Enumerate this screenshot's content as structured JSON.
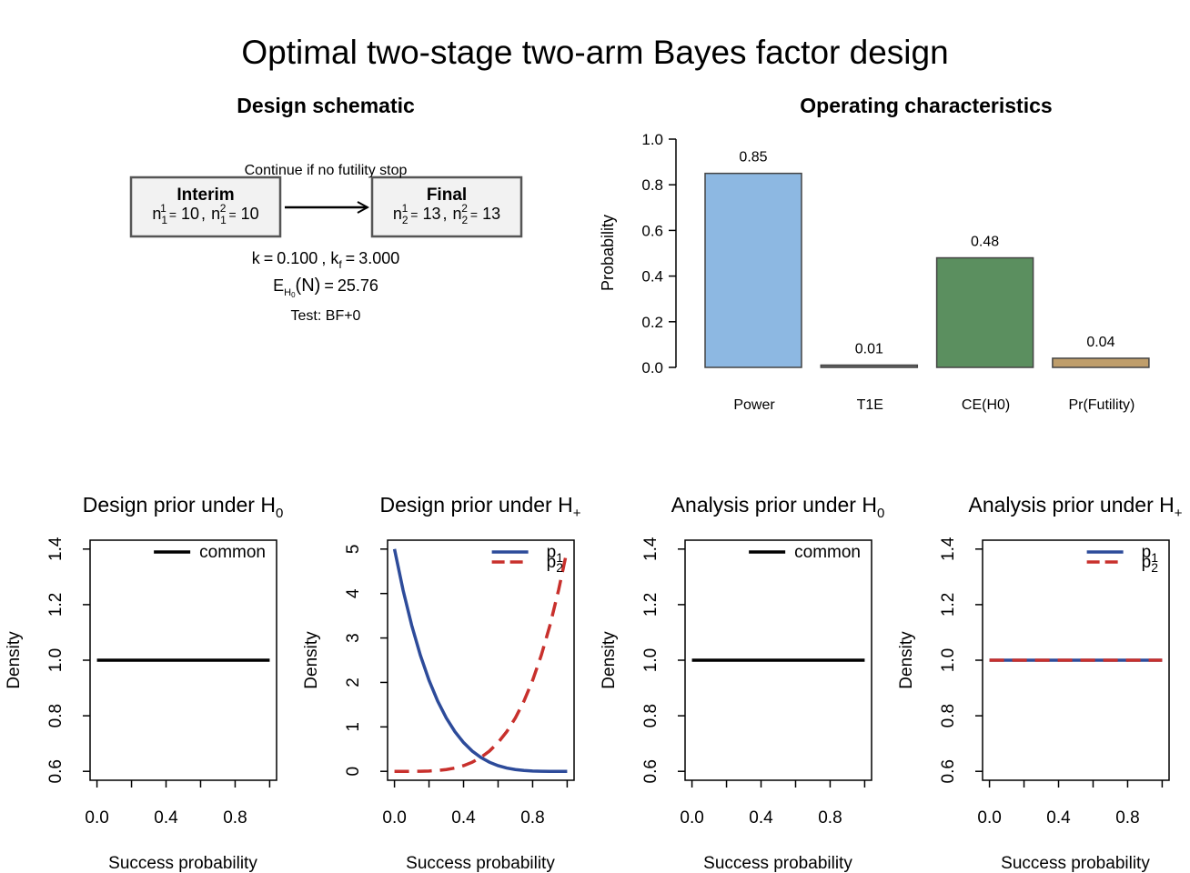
{
  "title": "Optimal two-stage two-arm Bayes factor design",
  "schematic": {
    "title": "Design schematic",
    "arrow_label": "Continue if no futility stop",
    "symbol_n": "n",
    "arm1": "1",
    "arm2": "2",
    "equals": "=",
    "comma": ",",
    "stages": [
      {
        "label": "Interim",
        "stage": "1",
        "n_arm1": 10,
        "n_arm2": 10
      },
      {
        "label": "Final",
        "stage": "2",
        "n_arm1": 13,
        "n_arm2": 13
      }
    ],
    "k": {
      "symbol": "k",
      "value": "0.100"
    },
    "kf": {
      "symbol": "k",
      "sub": "f",
      "value": "3.000"
    },
    "expected_n": {
      "symbol": "E",
      "sub": "H",
      "subsub": "0",
      "arg": "(N)",
      "value": 25.76
    },
    "test": "Test: BF+0"
  },
  "chart_data": [
    {
      "type": "bar",
      "title": "Operating characteristics",
      "y_label": "Probability",
      "categories": [
        "Power",
        "T1E",
        "CE(H0)",
        "Pr(Futility)"
      ],
      "values": [
        0.85,
        0.01,
        0.48,
        0.04
      ],
      "colors": [
        "#8db8e2",
        "#6b6b6b",
        "#5b8f5f",
        "#bf9e6b"
      ],
      "ylim": [
        0,
        1
      ],
      "yticks": [
        {
          "value": 0,
          "label": "0.0"
        },
        {
          "value": 0.2,
          "label": "0.2"
        },
        {
          "value": 0.4,
          "label": "0.4"
        },
        {
          "value": 0.6,
          "label": "0.6"
        },
        {
          "value": 0.8,
          "label": "0.8"
        },
        {
          "value": 1,
          "label": "1.0"
        }
      ]
    },
    {
      "type": "line",
      "title": "Design prior under H",
      "title_sub": "0",
      "x_label": "Success probability",
      "y_label": "Density",
      "xlim": [
        -0.04,
        1.04
      ],
      "ylim": [
        0.568,
        1.432
      ],
      "xticks": [
        {
          "value": 0,
          "label": "0.0"
        },
        {
          "value": 0.2,
          "label": null
        },
        {
          "value": 0.4,
          "label": "0.4"
        },
        {
          "value": 0.6,
          "label": null
        },
        {
          "value": 0.8,
          "label": "0.8"
        },
        {
          "value": 1,
          "label": null
        }
      ],
      "yticks": [
        0.6,
        0.8,
        {
          "value": 1,
          "label": "1.0"
        },
        1.2,
        1.4
      ],
      "legend": "topright",
      "series": [
        {
          "name": "common",
          "color": "#000000",
          "dash": false,
          "x": [
            0,
            1
          ],
          "values": [
            1,
            1
          ]
        }
      ]
    },
    {
      "type": "line",
      "title": "Design prior under H",
      "title_sub": "+",
      "x_label": "Success probability",
      "y_label": "Density",
      "xlim": [
        -0.04,
        1.04
      ],
      "ylim": [
        -0.2,
        5.2
      ],
      "xticks": [
        {
          "value": 0,
          "label": "0.0"
        },
        {
          "value": 0.2,
          "label": null
        },
        {
          "value": 0.4,
          "label": "0.4"
        },
        {
          "value": 0.6,
          "label": null
        },
        {
          "value": 0.8,
          "label": "0.8"
        },
        {
          "value": 1,
          "label": null
        }
      ],
      "yticks": [
        0,
        1,
        2,
        3,
        4,
        5
      ],
      "legend": "topright",
      "series": [
        {
          "name": "p",
          "name_sub": "1",
          "color": "#2d4b9a",
          "dash": false,
          "x": [
            0,
            0.05,
            0.1,
            0.15,
            0.2,
            0.25,
            0.3,
            0.35,
            0.4,
            0.45,
            0.5,
            0.55,
            0.6,
            0.65,
            0.7,
            0.75,
            0.8,
            0.85,
            0.9,
            0.95,
            1
          ],
          "values": [
            5,
            4.0725,
            3.2805,
            2.61,
            2.048,
            1.582,
            1.2005,
            0.8925,
            0.648,
            0.4575,
            0.3125,
            0.205,
            0.128,
            0.075,
            0.0405,
            0.0195,
            0.008,
            0.0025,
            0.0005,
            0,
            0
          ]
        },
        {
          "name": "p",
          "name_sub": "2",
          "color": "#c8302c",
          "dash": true,
          "x": [
            0,
            0.05,
            0.1,
            0.15,
            0.2,
            0.25,
            0.3,
            0.35,
            0.4,
            0.45,
            0.5,
            0.55,
            0.6,
            0.65,
            0.7,
            0.75,
            0.8,
            0.85,
            0.9,
            0.95,
            0.99
          ],
          "values": [
            0,
            0,
            0.0005,
            0.0025,
            0.008,
            0.0195,
            0.0405,
            0.075,
            0.128,
            0.205,
            0.3125,
            0.4575,
            0.648,
            0.8925,
            1.2005,
            1.582,
            2.048,
            2.61,
            3.2805,
            4.0725,
            4.8
          ]
        }
      ]
    },
    {
      "type": "line",
      "title": "Analysis prior under H",
      "title_sub": "0",
      "x_label": "Success probability",
      "y_label": "Density",
      "xlim": [
        -0.04,
        1.04
      ],
      "ylim": [
        0.568,
        1.432
      ],
      "xticks": [
        {
          "value": 0,
          "label": "0.0"
        },
        {
          "value": 0.2,
          "label": null
        },
        {
          "value": 0.4,
          "label": "0.4"
        },
        {
          "value": 0.6,
          "label": null
        },
        {
          "value": 0.8,
          "label": "0.8"
        },
        {
          "value": 1,
          "label": null
        }
      ],
      "yticks": [
        0.6,
        0.8,
        {
          "value": 1,
          "label": "1.0"
        },
        1.2,
        1.4
      ],
      "legend": "topright",
      "series": [
        {
          "name": "common",
          "color": "#000000",
          "dash": false,
          "x": [
            0,
            1
          ],
          "values": [
            1,
            1
          ]
        }
      ]
    },
    {
      "type": "line",
      "title": "Analysis prior under H",
      "title_sub": "+",
      "x_label": "Success probability",
      "y_label": "Density",
      "xlim": [
        -0.04,
        1.04
      ],
      "ylim": [
        0.568,
        1.432
      ],
      "xticks": [
        {
          "value": 0,
          "label": "0.0"
        },
        {
          "value": 0.2,
          "label": null
        },
        {
          "value": 0.4,
          "label": "0.4"
        },
        {
          "value": 0.6,
          "label": null
        },
        {
          "value": 0.8,
          "label": "0.8"
        },
        {
          "value": 1,
          "label": null
        }
      ],
      "yticks": [
        0.6,
        0.8,
        {
          "value": 1,
          "label": "1.0"
        },
        1.2,
        1.4
      ],
      "legend": "topright",
      "series": [
        {
          "name": "p",
          "name_sub": "1",
          "color": "#2d4b9a",
          "dash": false,
          "x": [
            0,
            1
          ],
          "values": [
            1,
            1
          ]
        },
        {
          "name": "p",
          "name_sub": "2",
          "color": "#c8302c",
          "dash": true,
          "x": [
            0,
            1
          ],
          "values": [
            1,
            1
          ]
        }
      ]
    }
  ]
}
